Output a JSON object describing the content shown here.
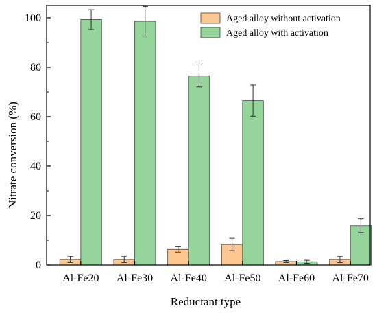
{
  "chart_data": {
    "type": "bar",
    "xlabel": "Reductant type",
    "ylabel": "Nitrate conversion (%)",
    "ylim": [
      0,
      105
    ],
    "yticks": [
      0,
      20,
      40,
      60,
      80,
      100
    ],
    "categories": [
      "Al-Fe20",
      "Al-Fe30",
      "Al-Fe40",
      "Al-Fe50",
      "Al-Fe60",
      "Al-Fe70"
    ],
    "series": [
      {
        "name": "Aged alloy without activation",
        "color": "#fcc791",
        "values": [
          2.2,
          2.2,
          6.3,
          8.3,
          1.4,
          2.2
        ],
        "errors": [
          1.2,
          1.2,
          1.1,
          2.5,
          0.4,
          1.2
        ]
      },
      {
        "name": "Aged alloy with activation",
        "color": "#95d59b",
        "values": [
          99.3,
          98.6,
          76.5,
          66.5,
          1.3,
          15.9
        ],
        "errors": [
          4.0,
          6.0,
          4.5,
          6.3,
          0.6,
          2.8
        ]
      }
    ],
    "legend_position": "top-right",
    "grid": false
  }
}
